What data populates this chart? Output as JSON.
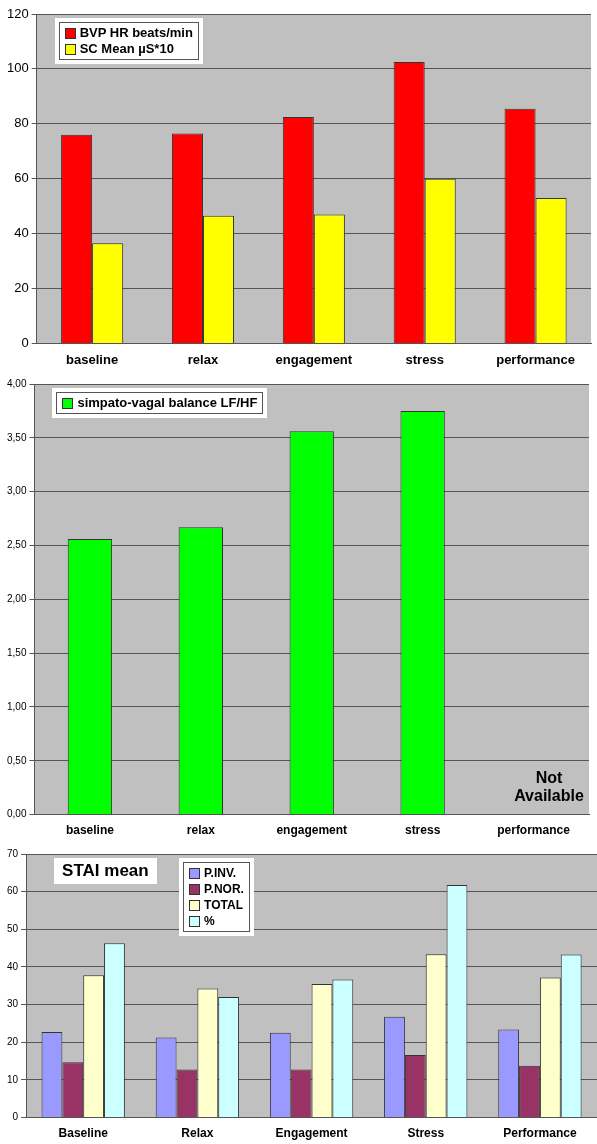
{
  "chart_data": [
    {
      "type": "bar",
      "categories": [
        "baseline",
        "relax",
        "engagement",
        "stress",
        "performance"
      ],
      "series": [
        {
          "name": "BVP HR beats/min",
          "color": "#ff0000",
          "values": [
            76,
            76.5,
            82.5,
            102.5,
            85.5
          ]
        },
        {
          "name": "SC Mean µS*10",
          "color": "#ffff00",
          "values": [
            36.5,
            46.5,
            47,
            60,
            53
          ]
        }
      ],
      "ylim": [
        0,
        120
      ],
      "yticks": [
        0,
        20,
        40,
        60,
        80,
        100,
        120
      ],
      "grid": "y",
      "legend": "top left"
    },
    {
      "type": "bar",
      "categories": [
        "baseline",
        "relax",
        "engagement",
        "stress",
        "performance"
      ],
      "series": [
        {
          "name": "simpato-vagal balance LF/HF",
          "color": "#00ff00",
          "values": [
            2.56,
            2.67,
            3.56,
            3.75,
            null
          ]
        }
      ],
      "ylim": [
        0,
        4
      ],
      "yticks": [
        {
          "value": 0,
          "label": "0,00"
        },
        {
          "value": 0.5,
          "label": "0,50"
        },
        {
          "value": 1,
          "label": "1,00"
        },
        {
          "value": 1.5,
          "label": "1,50"
        },
        {
          "value": 2,
          "label": "2,00"
        },
        {
          "value": 2.5,
          "label": "2,50"
        },
        {
          "value": 3,
          "label": "3,00"
        },
        {
          "value": 3.5,
          "label": "3,50"
        },
        {
          "value": 4,
          "label": "4,00"
        }
      ],
      "grid": "y",
      "legend": "top left",
      "annotations": [
        "Not Available"
      ]
    },
    {
      "type": "bar",
      "title": "STAI mean",
      "categories": [
        "Baseline",
        "Relax",
        "Engagement",
        "Stress",
        "Performance"
      ],
      "series": [
        {
          "name": "P.INV.",
          "color": "#9999ff",
          "values": [
            22.7,
            21.3,
            22.5,
            26.8,
            23.4
          ]
        },
        {
          "name": "P.NOR.",
          "color": "#993366",
          "values": [
            14.7,
            12.8,
            12.8,
            16.6,
            13.8
          ]
        },
        {
          "name": "TOTAL",
          "color": "#ffffcc",
          "values": [
            37.8,
            34.3,
            35.5,
            43.4,
            37.2
          ]
        },
        {
          "name": "%",
          "color": "#ccffff",
          "values": [
            46.3,
            32,
            36.7,
            61.8,
            43.3
          ]
        }
      ],
      "ylim": [
        0,
        70
      ],
      "yticks": [
        0,
        10,
        20,
        30,
        40,
        50,
        60,
        70
      ],
      "grid": "y",
      "legend": "top left"
    }
  ]
}
